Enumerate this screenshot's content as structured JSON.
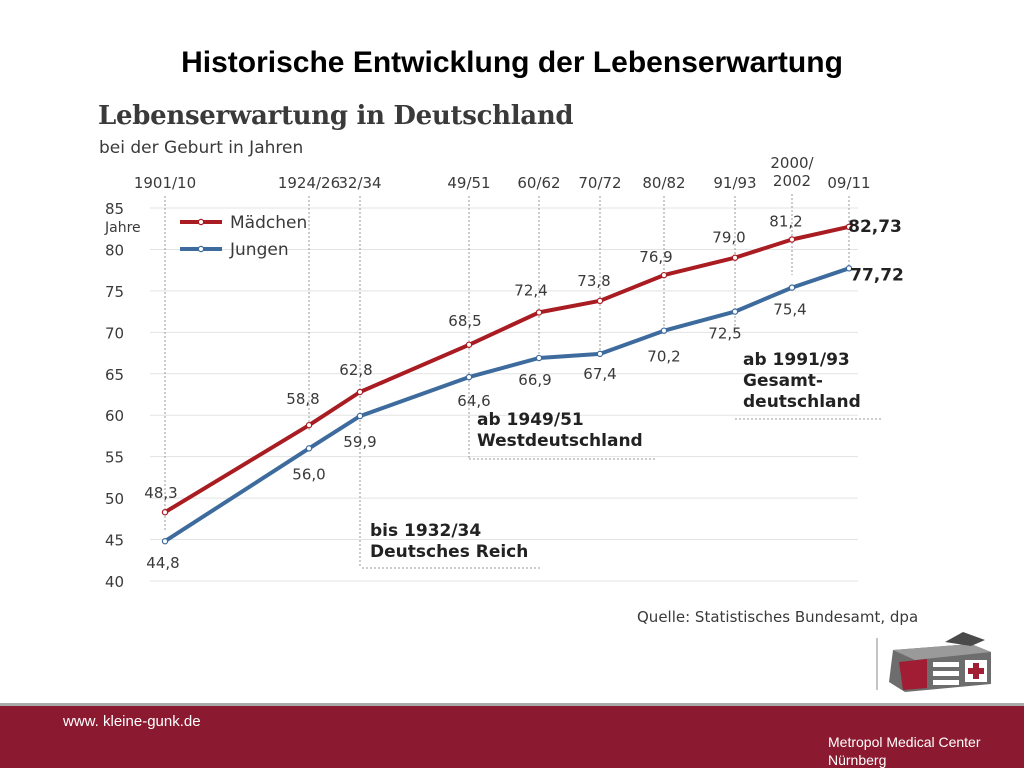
{
  "slide": {
    "title": "Historische Entwicklung der Lebenserwartung",
    "footer_url": "www. kleine-gunk.de",
    "footer_org_line1": "Metropol Medical Center",
    "footer_org_line2": "Nürnberg"
  },
  "colors": {
    "maedchen": "#a81c22",
    "jungen": "#3d6b9e",
    "footer": "#8b1a30"
  },
  "chart_data": {
    "type": "line",
    "title": "Lebenserwartung in Deutschland",
    "subtitle": "bei der Geburt in Jahren",
    "ylabel": "Jahre",
    "ylim": [
      40,
      85
    ],
    "yticks": [
      40,
      45,
      50,
      55,
      60,
      65,
      70,
      75,
      80,
      85
    ],
    "grid": true,
    "legend_position": "top-left",
    "categories": [
      "1901/10",
      "1924/26",
      "32/34",
      "49/51",
      "60/62",
      "70/72",
      "80/82",
      "91/93",
      "2000/2002",
      "09/11"
    ],
    "x_labels": [
      [
        "1901/10"
      ],
      [
        "1924/26"
      ],
      [
        "32/34"
      ],
      [
        "49/51"
      ],
      [
        "60/62"
      ],
      [
        "70/72"
      ],
      [
        "80/82"
      ],
      [
        "91/93"
      ],
      [
        "2000/",
        "2002"
      ],
      [
        "09/11"
      ]
    ],
    "series": [
      {
        "name": "Mädchen",
        "values": [
          48.3,
          58.8,
          62.8,
          68.5,
          72.4,
          73.8,
          76.9,
          79.0,
          81.2,
          82.73
        ],
        "labels": [
          "48,3",
          "58,8",
          "62,8",
          "68,5",
          "72,4",
          "73,8",
          "76,9",
          "79,0",
          "81,2",
          "82,73"
        ]
      },
      {
        "name": "Jungen",
        "values": [
          44.8,
          56.0,
          59.9,
          64.6,
          66.9,
          67.4,
          70.2,
          72.5,
          75.4,
          77.72
        ],
        "labels": [
          "44,8",
          "56,0",
          "59,9",
          "64,6",
          "66,9",
          "67,4",
          "70,2",
          "72,5",
          "75,4",
          "77,72"
        ]
      }
    ],
    "annotations": [
      {
        "text_lines": [
          "bis 1932/34",
          "Deutsches Reich"
        ]
      },
      {
        "text_lines": [
          "ab 1949/51",
          "Westdeutschland"
        ]
      },
      {
        "text_lines": [
          "ab 1991/93",
          "Gesamt-",
          "deutschland"
        ]
      }
    ],
    "source": "Quelle: Statistisches Bundesamt, dpa"
  }
}
